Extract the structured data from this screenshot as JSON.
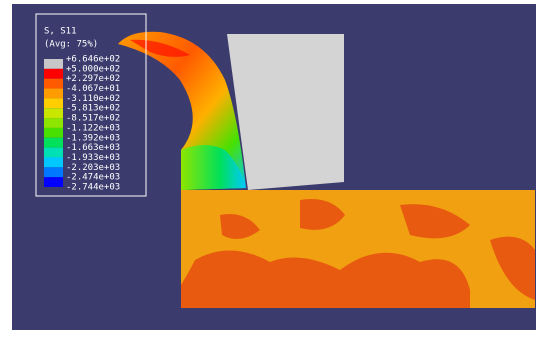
{
  "legend": {
    "title": "S, S11",
    "subtitle": "(Avg: 75%)",
    "labels": [
      "+6.646e+02",
      "+5.000e+02",
      "+2.297e+02",
      "-4.067e+01",
      "-3.110e+02",
      "-5.813e+02",
      "-8.517e+02",
      "-1.122e+03",
      "-1.392e+03",
      "-1.663e+03",
      "-1.933e+03",
      "-2.203e+03",
      "-2.474e+03",
      "-2.744e+03"
    ],
    "colors": [
      "#c8c8c8",
      "#ff0000",
      "#ff5a00",
      "#ff9c00",
      "#ffce00",
      "#c8e600",
      "#8ee600",
      "#48e000",
      "#00e05a",
      "#00e0b4",
      "#00c8ff",
      "#0078ff",
      "#0000ff"
    ]
  }
}
